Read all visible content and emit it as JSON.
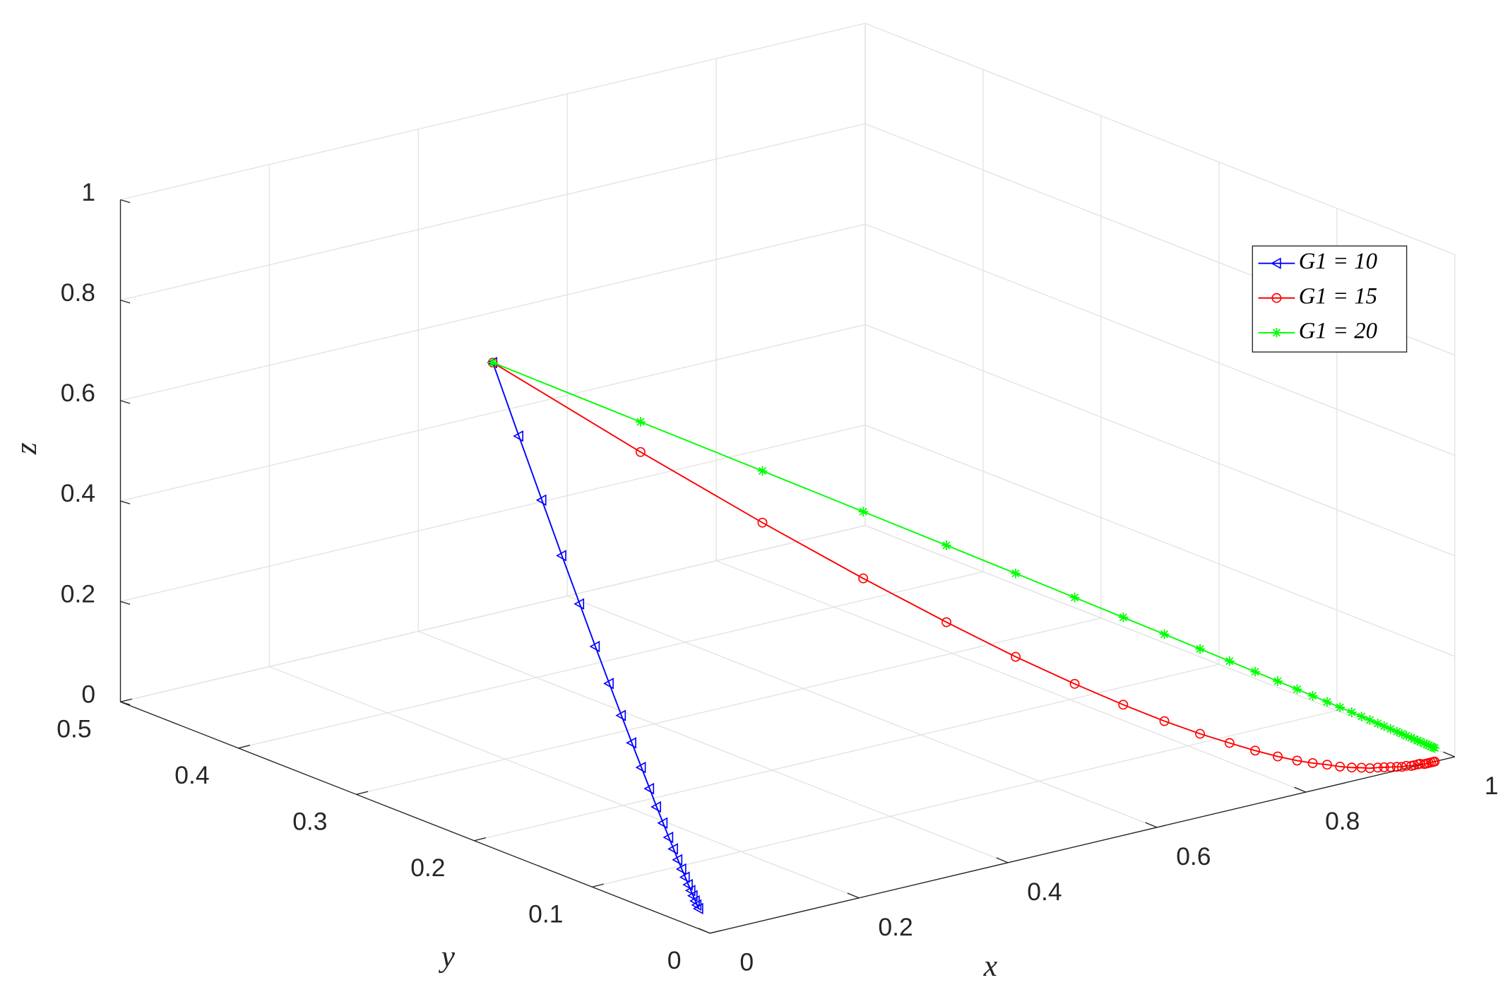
{
  "chart_data": {
    "type": "line3d",
    "xlabel": "x",
    "ylabel": "y",
    "zlabel": "z",
    "xlim": [
      0,
      1
    ],
    "ylim": [
      0,
      0.5
    ],
    "zlim": [
      0,
      1
    ],
    "xticks": [
      0,
      0.2,
      0.4,
      0.6,
      0.8,
      1
    ],
    "yticks": [
      0,
      0.1,
      0.2,
      0.3,
      0.4,
      0.5
    ],
    "zticks": [
      0,
      0.2,
      0.4,
      0.6,
      0.8,
      1
    ],
    "grid": true,
    "legend": "upper right",
    "series": [
      {
        "name": "G1 = 10",
        "color": "#0000ff",
        "marker": "triangle-left",
        "x": [
          0.5,
          0.44,
          0.387,
          0.341,
          0.3,
          0.264,
          0.232,
          0.204,
          0.18,
          0.158,
          0.139,
          0.123,
          0.108,
          0.095,
          0.084,
          0.074,
          0.065,
          0.057,
          0.05,
          0.044,
          0.039,
          0.034,
          0.03,
          0.026
        ],
        "y": [
          0.5,
          0.44,
          0.387,
          0.341,
          0.3,
          0.264,
          0.232,
          0.204,
          0.18,
          0.158,
          0.139,
          0.123,
          0.108,
          0.095,
          0.084,
          0.074,
          0.065,
          0.057,
          0.05,
          0.044,
          0.039,
          0.034,
          0.03,
          0.026
        ],
        "z": [
          0.5,
          0.43,
          0.37,
          0.318,
          0.274,
          0.235,
          0.202,
          0.174,
          0.15,
          0.129,
          0.111,
          0.095,
          0.082,
          0.07,
          0.061,
          0.052,
          0.045,
          0.039,
          0.033,
          0.029,
          0.025,
          0.021,
          0.018,
          0.016
        ]
      },
      {
        "name": "G1 = 15",
        "color": "#ff0000",
        "marker": "circle",
        "x": [
          0.5,
          0.54,
          0.577,
          0.611,
          0.642,
          0.67,
          0.697,
          0.721,
          0.743,
          0.764,
          0.783,
          0.8,
          0.816,
          0.831,
          0.844,
          0.857,
          0.868,
          0.879,
          0.889,
          0.897,
          0.906,
          0.913,
          0.92,
          0.927,
          0.932,
          0.938,
          0.943,
          0.947,
          0.952,
          0.955,
          0.959,
          0.962,
          0.965,
          0.968,
          0.971,
          0.973
        ],
        "y": [
          0.5,
          0.4,
          0.32,
          0.256,
          0.205,
          0.164,
          0.131,
          0.105,
          0.084,
          0.067,
          0.054,
          0.043,
          0.034,
          0.027,
          0.022,
          0.018,
          0.014,
          0.011,
          0.009,
          0.007,
          0.006,
          0.005,
          0.004,
          0.003,
          0.002,
          0.002,
          0.001,
          0.001,
          0.001,
          0.001,
          0,
          0,
          0,
          0,
          0,
          0
        ],
        "z": [
          0.5,
          0.4,
          0.32,
          0.256,
          0.205,
          0.164,
          0.131,
          0.105,
          0.084,
          0.067,
          0.054,
          0.043,
          0.034,
          0.027,
          0.022,
          0.018,
          0.014,
          0.011,
          0.009,
          0.007,
          0.006,
          0.005,
          0.004,
          0.003,
          0.002,
          0.002,
          0.001,
          0.001,
          0.001,
          0.001,
          0,
          0,
          0,
          0,
          0,
          0
        ]
      },
      {
        "name": "G1 = 20",
        "color": "#00ff00",
        "marker": "asterisk",
        "x": [
          0.5,
          0.54,
          0.577,
          0.611,
          0.642,
          0.67,
          0.697,
          0.721,
          0.743,
          0.764,
          0.783,
          0.8,
          0.816,
          0.831,
          0.844,
          0.857,
          0.868,
          0.879,
          0.889,
          0.897,
          0.906,
          0.913,
          0.92,
          0.927,
          0.932,
          0.938,
          0.943,
          0.947,
          0.952,
          0.955,
          0.959,
          0.962,
          0.965,
          0.968,
          0.971,
          0.973
        ],
        "y": [
          0.5,
          0.4,
          0.32,
          0.256,
          0.205,
          0.164,
          0.131,
          0.105,
          0.084,
          0.067,
          0.054,
          0.043,
          0.034,
          0.027,
          0.022,
          0.018,
          0.014,
          0.011,
          0.009,
          0.007,
          0.006,
          0.005,
          0.004,
          0.003,
          0.002,
          0.002,
          0.001,
          0.001,
          0.001,
          0.001,
          0,
          0,
          0,
          0,
          0,
          0
        ],
        "z": [
          0.5,
          0.46,
          0.423,
          0.389,
          0.358,
          0.33,
          0.303,
          0.279,
          0.257,
          0.236,
          0.217,
          0.2,
          0.184,
          0.169,
          0.156,
          0.143,
          0.132,
          0.121,
          0.111,
          0.103,
          0.094,
          0.087,
          0.08,
          0.073,
          0.068,
          0.062,
          0.057,
          0.053,
          0.048,
          0.045,
          0.041,
          0.038,
          0.035,
          0.032,
          0.029,
          0.027
        ]
      }
    ]
  }
}
